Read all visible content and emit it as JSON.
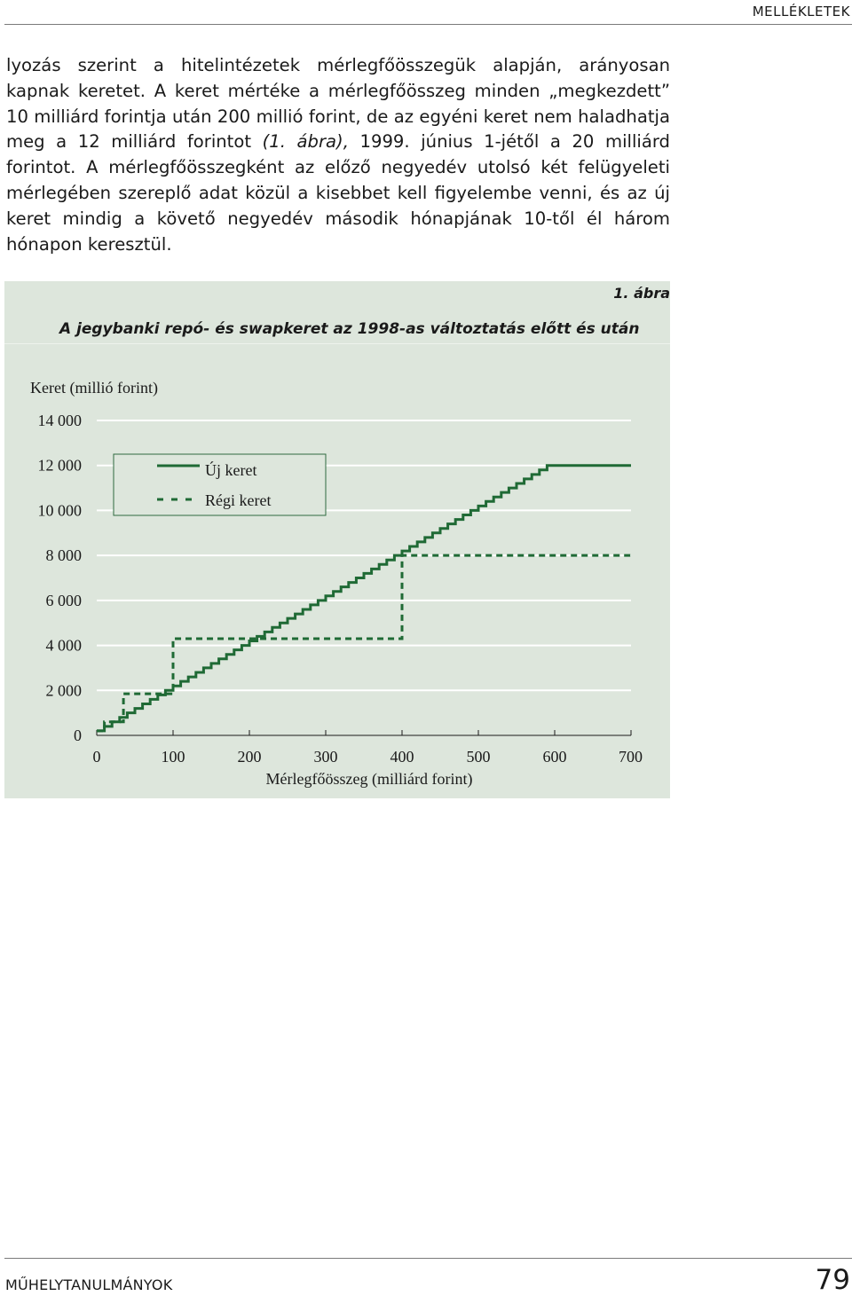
{
  "header": {
    "section": "MELLÉKLETEK"
  },
  "body": {
    "paragraph_before_fig": "lyozás szerint a hitelintézetek mérlegfőösszegük alapján, arányosan kapnak keretet. A keret mértéke a mérlegfőösszeg minden „megkezdett” 10 milliárd forintja után 200 millió forint, de az egyéni keret nem haladhatja meg a 12 milliárd forintot ",
    "fig_ref": "(1. ábra),",
    "paragraph_after_fig": " 1999. június 1-jétől a 20 milliárd forintot. A mérlegfőösszegként az előző negyedév utolsó két felügyeleti mérlegében szereplő adat közül a kisebbet kell figyelembe venni, és az új keret mindig a követő negyedév második hónapjának 10-től él három hónapon keresztül."
  },
  "figure": {
    "number": "1. ábra",
    "title": "A jegybanki repó- és swapkeret az 1998-as változtatás előtt és után"
  },
  "colors": {
    "series": "#1f6a35",
    "panel": "#dde6dc",
    "grid": "#ffffff"
  },
  "chart_data": {
    "type": "line",
    "ylabel": "Keret (millió forint)",
    "xlabel": "Mérlegfőösszeg (milliárd forint)",
    "xlim": [
      0,
      700
    ],
    "ylim": [
      0,
      14000
    ],
    "x_ticks": [
      0,
      100,
      200,
      300,
      400,
      500,
      600,
      700
    ],
    "x_tick_labels": [
      "0",
      "100",
      "200",
      "300",
      "400",
      "500",
      "600",
      "700"
    ],
    "y_ticks": [
      0,
      2000,
      4000,
      6000,
      8000,
      10000,
      12000,
      14000
    ],
    "y_tick_labels": [
      "0",
      "2 000",
      "4 000",
      "6 000",
      "8 000",
      "10 000",
      "12 000",
      "14 000"
    ],
    "grid": "horizontal",
    "legend_position": "top-left",
    "series": [
      {
        "name": "Új keret",
        "style": "solid",
        "step": true,
        "x": [
          0,
          10,
          20,
          30,
          40,
          50,
          60,
          70,
          80,
          90,
          100,
          110,
          120,
          130,
          140,
          150,
          160,
          170,
          180,
          190,
          200,
          210,
          220,
          230,
          240,
          250,
          260,
          270,
          280,
          290,
          300,
          310,
          320,
          330,
          340,
          350,
          360,
          370,
          380,
          390,
          400,
          410,
          420,
          430,
          440,
          450,
          460,
          470,
          480,
          490,
          500,
          510,
          520,
          530,
          540,
          550,
          560,
          570,
          580,
          590,
          600,
          700
        ],
        "y": [
          200,
          400,
          600,
          800,
          1000,
          1200,
          1400,
          1600,
          1800,
          2000,
          2200,
          2400,
          2600,
          2800,
          3000,
          3200,
          3400,
          3600,
          3800,
          4000,
          4200,
          4400,
          4600,
          4800,
          5000,
          5200,
          5400,
          5600,
          5800,
          6000,
          6200,
          6400,
          6600,
          6800,
          7000,
          7200,
          7400,
          7600,
          7800,
          8000,
          8200,
          8400,
          8600,
          8800,
          9000,
          9200,
          9400,
          9600,
          9800,
          10000,
          10200,
          10400,
          10600,
          10800,
          11000,
          11200,
          11400,
          11600,
          11800,
          12000,
          12000,
          12000
        ]
      },
      {
        "name": "Régi keret",
        "style": "dashed",
        "step": true,
        "x": [
          0,
          10,
          35,
          100,
          400,
          700
        ],
        "y": [
          200,
          600,
          1850,
          4300,
          8000,
          8000
        ]
      }
    ]
  },
  "footer": {
    "journal": "MŰHELYTANULMÁNYOK",
    "page": "79"
  }
}
